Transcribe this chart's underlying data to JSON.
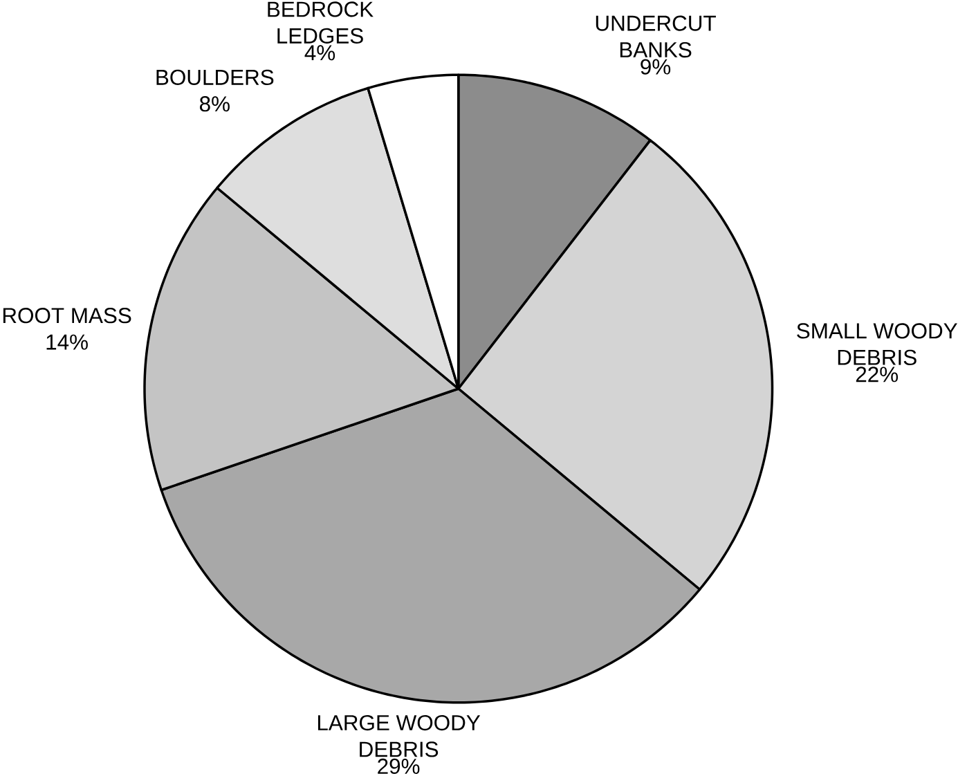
{
  "chart_data": {
    "type": "pie",
    "categories": [
      "UNDERCUT BANKS",
      "SMALL WOODY DEBRIS",
      "LARGE WOODY DEBRIS",
      "ROOT MASS",
      "BOULDERS",
      "BEDROCK LEDGES"
    ],
    "values": [
      9,
      22,
      29,
      14,
      8,
      4
    ],
    "value_labels": [
      "9%",
      "22%",
      "29%",
      "14%",
      "8%",
      "4%"
    ],
    "colors": [
      "#8c8c8c",
      "#d4d4d4",
      "#a8a8a8",
      "#c4c4c4",
      "#dedede",
      "#ffffff"
    ]
  }
}
